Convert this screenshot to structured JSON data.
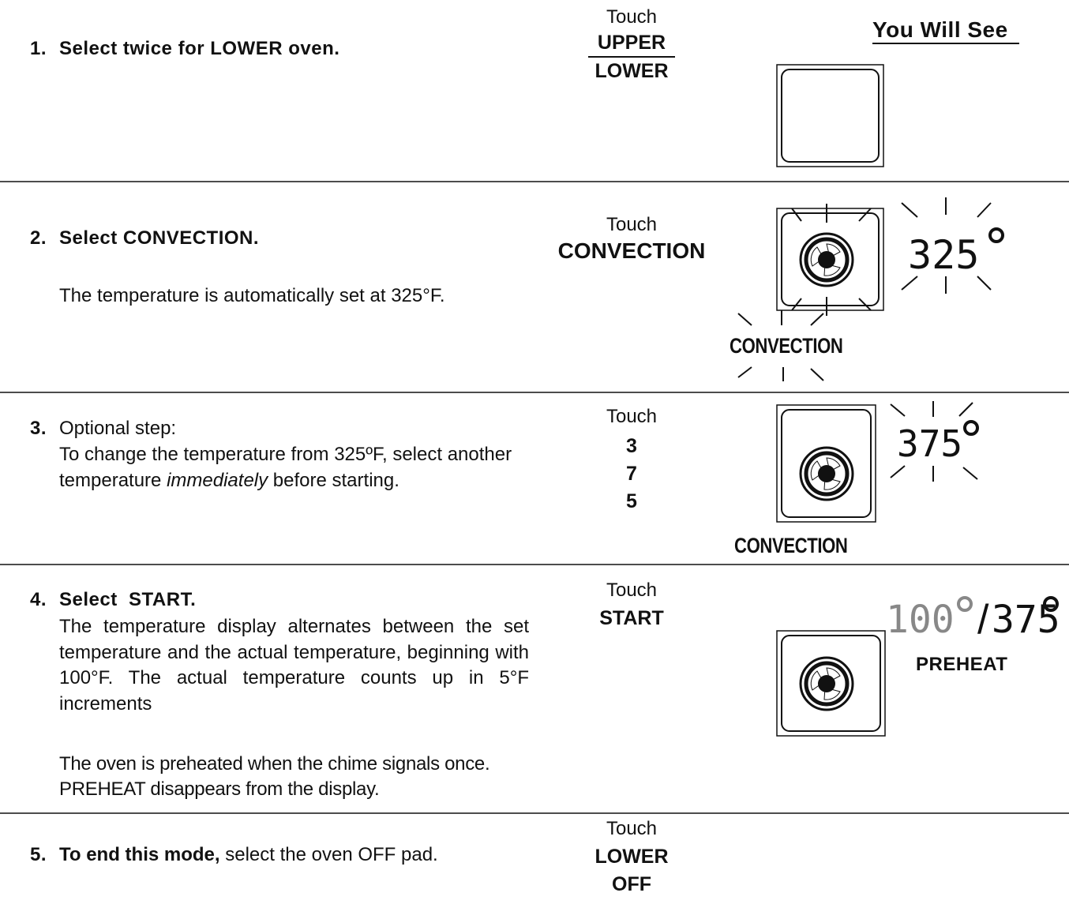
{
  "header": {
    "you_will_see": "You Will See"
  },
  "steps": [
    {
      "number": "1.",
      "title": "Select twice for LOWER oven.",
      "touch": "Touch",
      "keys": [
        "UPPER",
        "LOWER"
      ]
    },
    {
      "number": "2.",
      "title": "Select CONVECTION.",
      "description": "The temperature is automatically set at 325°F.",
      "touch": "Touch",
      "keys": [
        "CONVECTION"
      ],
      "display": {
        "temperature": "325",
        "mode": "CONVECTION"
      }
    },
    {
      "number": "3.",
      "title": "Optional step:",
      "description": {
        "before": "To change the temperature from 325ºF, select another temperature",
        "emphasis": "immediately",
        "after": "before  starting."
      },
      "touch": "Touch",
      "keys": [
        "3",
        "7",
        "5"
      ],
      "display": {
        "temperature": "375",
        "mode": "CONVECTION"
      }
    },
    {
      "number": "4.",
      "title": "Select  START.",
      "paragraphs": [
        "The temperature display alternates between the set temperature and the actual temperature, beginning with 100°F.  The actual temperature counts up in 5°F increments",
        "The oven is preheated when the chime signals once. PREHEAT disappears from the display."
      ],
      "touch": "Touch",
      "keys": [
        "START"
      ],
      "display": {
        "actual": "100",
        "separator": "/",
        "set": "375",
        "status": "PREHEAT"
      }
    },
    {
      "number": "5.",
      "title": "To end this mode,",
      "rest": "select the oven OFF pad.",
      "touch": "Touch",
      "keys": [
        "LOWER",
        "OFF"
      ]
    }
  ]
}
